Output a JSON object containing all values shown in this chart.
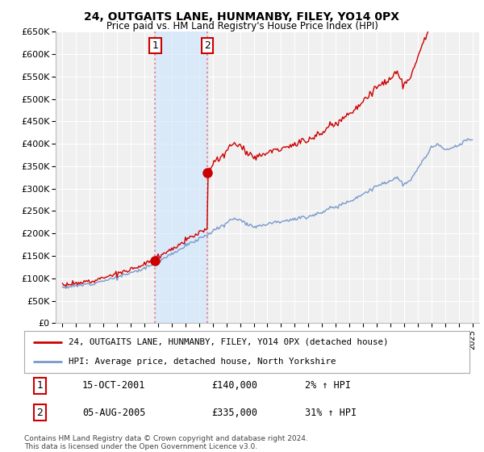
{
  "title": "24, OUTGAITS LANE, HUNMANBY, FILEY, YO14 0PX",
  "subtitle": "Price paid vs. HM Land Registry's House Price Index (HPI)",
  "ylabel_ticks": [
    "£0",
    "£50K",
    "£100K",
    "£150K",
    "£200K",
    "£250K",
    "£300K",
    "£350K",
    "£400K",
    "£450K",
    "£500K",
    "£550K",
    "£600K",
    "£650K"
  ],
  "ytick_values": [
    0,
    50000,
    100000,
    150000,
    200000,
    250000,
    300000,
    350000,
    400000,
    450000,
    500000,
    550000,
    600000,
    650000
  ],
  "ylim": [
    0,
    650000
  ],
  "xlim_start": 1994.5,
  "xlim_end": 2025.5,
  "background_color": "#ffffff",
  "plot_bg_color": "#f0f0f0",
  "grid_color": "#ffffff",
  "purchase1_x": 2001.79,
  "purchase1_y": 140000,
  "purchase2_x": 2005.59,
  "purchase2_y": 335000,
  "vspan_color": "#cce5ff",
  "vspan_alpha": 0.6,
  "vline1_x": 2001.79,
  "vline2_x": 2005.59,
  "vline_color": "#ee8888",
  "legend_line1": "24, OUTGAITS LANE, HUNMANBY, FILEY, YO14 0PX (detached house)",
  "legend_line2": "HPI: Average price, detached house, North Yorkshire",
  "legend_line1_color": "#cc0000",
  "legend_line2_color": "#7799cc",
  "table_row1": [
    "1",
    "15-OCT-2001",
    "£140,000",
    "2% ↑ HPI"
  ],
  "table_row2": [
    "2",
    "05-AUG-2005",
    "£335,000",
    "31% ↑ HPI"
  ],
  "footnote": "Contains HM Land Registry data © Crown copyright and database right 2024.\nThis data is licensed under the Open Government Licence v3.0.",
  "xtick_years": [
    1995,
    1996,
    1997,
    1998,
    1999,
    2000,
    2001,
    2002,
    2003,
    2004,
    2005,
    2006,
    2007,
    2008,
    2009,
    2010,
    2011,
    2012,
    2013,
    2014,
    2015,
    2016,
    2017,
    2018,
    2019,
    2020,
    2021,
    2022,
    2023,
    2024,
    2025
  ]
}
